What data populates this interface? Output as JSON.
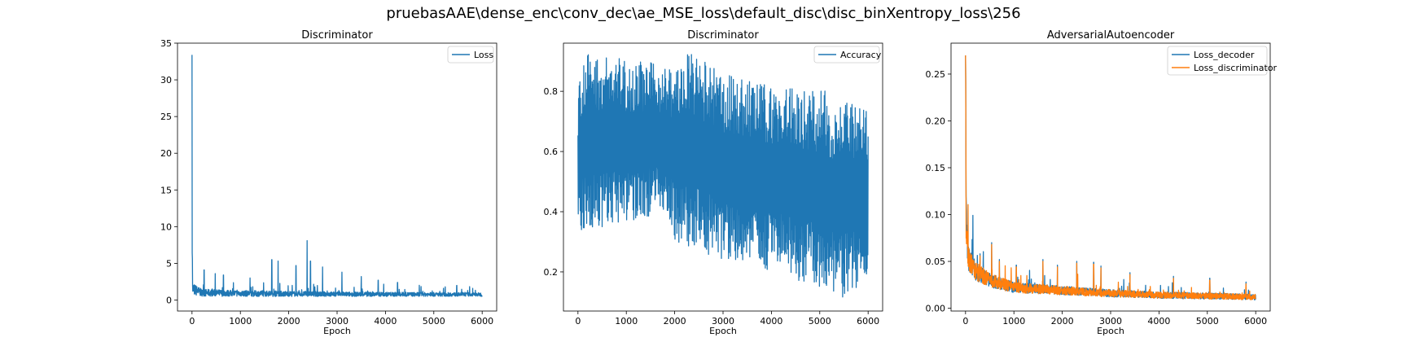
{
  "figure": {
    "suptitle": "pruebasAAE\\dense_enc\\conv_dec\\ae_MSE_loss\\default_disc\\disc_binXentropy_loss\\256"
  },
  "colors": {
    "blue": "#1f77b4",
    "orange": "#ff7f0e",
    "axes": "#000000",
    "legend_border": "#cccccc"
  },
  "chart_data": [
    {
      "type": "line",
      "title": "Discriminator",
      "xlabel": "Epoch",
      "ylabel": "",
      "xlim": [
        -300,
        6300
      ],
      "ylim": [
        -1.5,
        35
      ],
      "xticks": [
        0,
        1000,
        2000,
        3000,
        4000,
        5000,
        6000
      ],
      "xtick_labels": [
        "0",
        "1000",
        "2000",
        "3000",
        "4000",
        "5000",
        "6000"
      ],
      "yticks": [
        0,
        5,
        10,
        15,
        20,
        25,
        30,
        35
      ],
      "ytick_labels": [
        "0",
        "5",
        "10",
        "15",
        "20",
        "25",
        "30",
        "35"
      ],
      "grid": false,
      "legend": "top-right",
      "x": [
        0,
        6000
      ],
      "series": [
        {
          "name": "Loss",
          "color": "#1f77b4",
          "trend": [
            [
              0,
              33.4
            ],
            [
              10,
              1.5
            ],
            [
              200,
              1.0
            ],
            [
              1000,
              0.9
            ],
            [
              3000,
              0.8
            ],
            [
              6000,
              0.75
            ]
          ],
          "baseline": [
            [
              0,
              0.3
            ],
            [
              6000,
              0.4
            ]
          ],
          "spikes": [
            [
              250,
              4.1
            ],
            [
              480,
              3.6
            ],
            [
              650,
              3.4
            ],
            [
              1200,
              3.0
            ],
            [
              1650,
              5.5
            ],
            [
              1780,
              5.3
            ],
            [
              2150,
              4.7
            ],
            [
              2380,
              8.1
            ],
            [
              2450,
              5.3
            ],
            [
              2700,
              4.5
            ],
            [
              3100,
              3.8
            ],
            [
              3500,
              3.2
            ],
            [
              3850,
              2.7
            ],
            [
              4250,
              2.4
            ],
            [
              4700,
              2.0
            ],
            [
              5200,
              1.6
            ],
            [
              5700,
              1.3
            ]
          ]
        }
      ]
    },
    {
      "type": "line",
      "title": "Discriminator",
      "xlabel": "Epoch",
      "ylabel": "",
      "xlim": [
        -300,
        6300
      ],
      "ylim": [
        0.07,
        0.96
      ],
      "xticks": [
        0,
        1000,
        2000,
        3000,
        4000,
        5000,
        6000
      ],
      "xtick_labels": [
        "0",
        "1000",
        "2000",
        "3000",
        "4000",
        "5000",
        "6000"
      ],
      "yticks": [
        0.2,
        0.4,
        0.6,
        0.8
      ],
      "ytick_labels": [
        "0.2",
        "0.4",
        "0.6",
        "0.8"
      ],
      "grid": false,
      "legend": "top-right",
      "x": [
        0,
        6000
      ],
      "series": [
        {
          "name": "Accuracy",
          "color": "#1f77b4",
          "upper": [
            [
              0,
              0.81
            ],
            [
              100,
              0.93
            ],
            [
              1000,
              0.91
            ],
            [
              2000,
              0.88
            ],
            [
              2300,
              0.93
            ],
            [
              3000,
              0.86
            ],
            [
              4000,
              0.82
            ],
            [
              5000,
              0.81
            ],
            [
              6000,
              0.73
            ]
          ],
          "lower": [
            [
              0,
              0.29
            ],
            [
              100,
              0.33
            ],
            [
              1000,
              0.36
            ],
            [
              1800,
              0.4
            ],
            [
              2000,
              0.3
            ],
            [
              3000,
              0.24
            ],
            [
              4000,
              0.2
            ],
            [
              5000,
              0.15
            ],
            [
              5400,
              0.1
            ],
            [
              6000,
              0.18
            ]
          ],
          "end": 0.65
        }
      ]
    },
    {
      "type": "line",
      "title": "AdversarialAutoencoder",
      "xlabel": "Epoch",
      "ylabel": "",
      "xlim": [
        -300,
        6300
      ],
      "ylim": [
        -0.003,
        0.283
      ],
      "xticks": [
        0,
        1000,
        2000,
        3000,
        4000,
        5000,
        6000
      ],
      "xtick_labels": [
        "0",
        "1000",
        "2000",
        "3000",
        "4000",
        "5000",
        "6000"
      ],
      "yticks": [
        0.0,
        0.05,
        0.1,
        0.15,
        0.2,
        0.25
      ],
      "ytick_labels": [
        "0.00",
        "0.05",
        "0.10",
        "0.15",
        "0.20",
        "0.25"
      ],
      "grid": false,
      "legend": "top-right",
      "x": [
        0,
        6000
      ],
      "series": [
        {
          "name": "Loss_decoder",
          "color": "#1f77b4",
          "trend": [
            [
              0,
              0.27
            ],
            [
              10,
              0.1
            ],
            [
              50,
              0.055
            ],
            [
              200,
              0.04
            ],
            [
              500,
              0.03
            ],
            [
              1000,
              0.022
            ],
            [
              2000,
              0.019
            ],
            [
              3000,
              0.016
            ],
            [
              4000,
              0.014
            ],
            [
              5000,
              0.013
            ],
            [
              6000,
              0.012
            ]
          ],
          "spikes": [
            [
              300,
              0.058
            ],
            [
              540,
              0.07
            ],
            [
              700,
              0.052
            ],
            [
              1050,
              0.046
            ],
            [
              1600,
              0.052
            ],
            [
              1900,
              0.046
            ],
            [
              2300,
              0.05
            ],
            [
              2650,
              0.049
            ],
            [
              2800,
              0.045
            ],
            [
              3400,
              0.038
            ],
            [
              4300,
              0.034
            ],
            [
              5050,
              0.032
            ],
            [
              5800,
              0.028
            ]
          ]
        },
        {
          "name": "Loss_discriminator",
          "color": "#ff7f0e",
          "trend": [
            [
              0,
              0.27
            ],
            [
              10,
              0.1
            ],
            [
              50,
              0.055
            ],
            [
              200,
              0.04
            ],
            [
              500,
              0.03
            ],
            [
              1000,
              0.022
            ],
            [
              2000,
              0.019
            ],
            [
              3000,
              0.016
            ],
            [
              4000,
              0.014
            ],
            [
              5000,
              0.013
            ],
            [
              6000,
              0.012
            ]
          ],
          "spikes": [
            [
              300,
              0.056
            ],
            [
              540,
              0.068
            ],
            [
              700,
              0.05
            ],
            [
              1050,
              0.044
            ],
            [
              1600,
              0.05
            ],
            [
              1900,
              0.044
            ],
            [
              2300,
              0.048
            ],
            [
              2650,
              0.047
            ],
            [
              2800,
              0.043
            ],
            [
              3400,
              0.036
            ],
            [
              4300,
              0.032
            ],
            [
              5050,
              0.03
            ],
            [
              5800,
              0.026
            ]
          ]
        }
      ]
    }
  ]
}
